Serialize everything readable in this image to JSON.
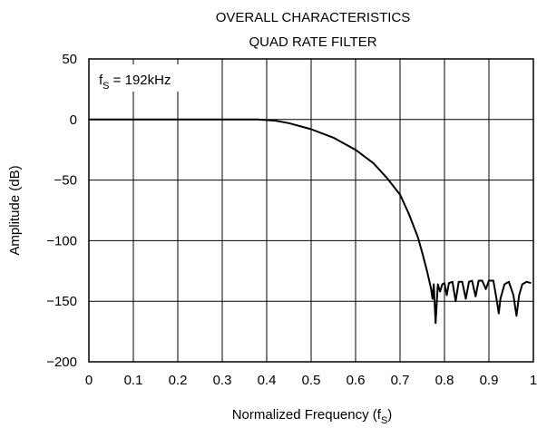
{
  "chart_data": {
    "type": "line",
    "title": "OVERALL CHARACTERISTICS",
    "subtitle": "QUAD RATE FILTER",
    "xlabel": "Normalized Frequency (f",
    "xlabel_sub": "S",
    "xlabel_close": ")",
    "ylabel": "Amplitude (dB)",
    "annotation": {
      "prefix": "f",
      "sub": "S",
      "text": " = 192kHz"
    },
    "xlim": [
      0,
      1
    ],
    "ylim": [
      -200,
      50
    ],
    "x_ticks": [
      0,
      0.1,
      0.2,
      0.3,
      0.4,
      0.5,
      0.6,
      0.7,
      0.8,
      0.9,
      1
    ],
    "x_tick_labels": [
      "0",
      "0.1",
      "0.2",
      "0.3",
      "0.4",
      "0.5",
      "0.6",
      "0.7",
      "0.8",
      "0.9",
      "1"
    ],
    "y_ticks": [
      50,
      0,
      -50,
      -100,
      -150,
      -200
    ],
    "y_tick_labels": [
      "50",
      "0",
      "−50",
      "−100",
      "−150",
      "−200"
    ],
    "grid": true,
    "series": [
      {
        "color": "#000000",
        "points": [
          [
            0.0,
            0
          ],
          [
            0.1,
            0
          ],
          [
            0.2,
            0
          ],
          [
            0.3,
            0
          ],
          [
            0.38,
            0
          ],
          [
            0.42,
            -1
          ],
          [
            0.45,
            -3
          ],
          [
            0.5,
            -8
          ],
          [
            0.55,
            -15
          ],
          [
            0.6,
            -25
          ],
          [
            0.64,
            -36
          ],
          [
            0.67,
            -48
          ],
          [
            0.7,
            -62
          ],
          [
            0.72,
            -78
          ],
          [
            0.74,
            -97
          ],
          [
            0.75,
            -110
          ],
          [
            0.76,
            -124
          ],
          [
            0.765,
            -132
          ],
          [
            0.77,
            -140
          ],
          [
            0.773,
            -148
          ],
          [
            0.776,
            -136
          ],
          [
            0.78,
            -168
          ],
          [
            0.785,
            -136
          ],
          [
            0.79,
            -142
          ],
          [
            0.795,
            -136
          ],
          [
            0.8,
            -135
          ],
          [
            0.805,
            -145
          ],
          [
            0.81,
            -135
          ],
          [
            0.818,
            -134
          ],
          [
            0.825,
            -150
          ],
          [
            0.832,
            -134
          ],
          [
            0.84,
            -134
          ],
          [
            0.848,
            -148
          ],
          [
            0.855,
            -134
          ],
          [
            0.862,
            -133
          ],
          [
            0.87,
            -146
          ],
          [
            0.877,
            -133
          ],
          [
            0.885,
            -133
          ],
          [
            0.893,
            -140
          ],
          [
            0.9,
            -133
          ],
          [
            0.91,
            -133
          ],
          [
            0.918,
            -150
          ],
          [
            0.922,
            -160
          ],
          [
            0.926,
            -148
          ],
          [
            0.935,
            -136
          ],
          [
            0.945,
            -134
          ],
          [
            0.955,
            -145
          ],
          [
            0.962,
            -162
          ],
          [
            0.968,
            -145
          ],
          [
            0.975,
            -136
          ],
          [
            0.985,
            -134
          ],
          [
            0.995,
            -135
          ]
        ]
      }
    ]
  }
}
